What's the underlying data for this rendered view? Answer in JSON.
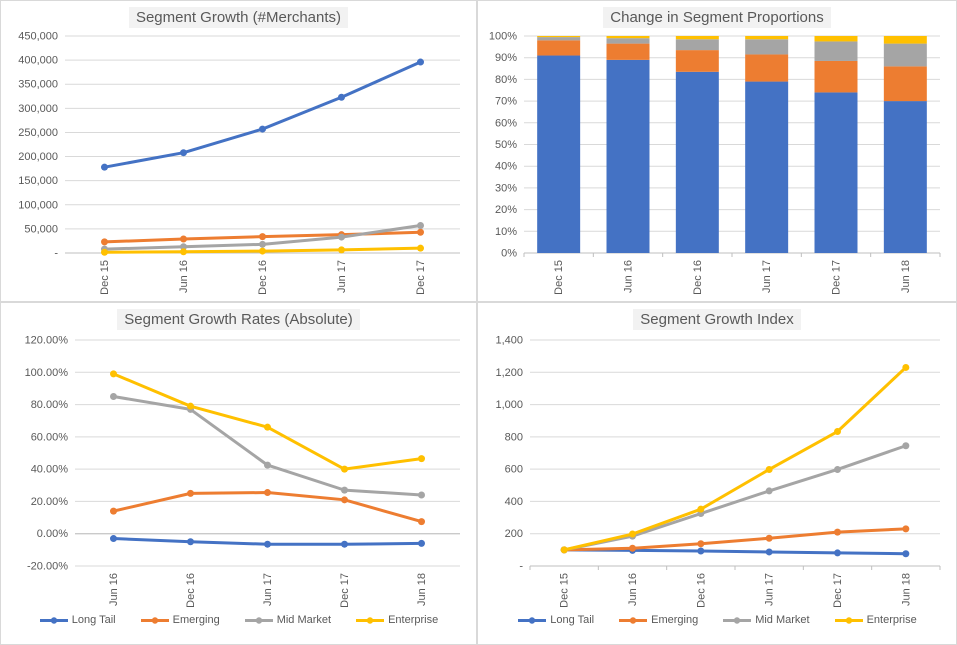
{
  "palette": {
    "long_tail": "#4472C4",
    "emerging": "#ED7D31",
    "mid_market": "#A5A5A5",
    "enterprise": "#FFC000",
    "axis_text": "#595959",
    "gridline": "#D9D9D9",
    "axis_line": "#BFBFBF",
    "title_text": "#595959",
    "title_bg": "#F2F2F2",
    "panel_border": "#D9D9D9"
  },
  "chart_data": [
    {
      "type": "line",
      "title": "Segment Growth (#Merchants)",
      "categories": [
        "Dec 15",
        "Jun 16",
        "Dec 16",
        "Jun 17",
        "Dec 17"
      ],
      "series": [
        {
          "name": "Long Tail",
          "color": "#4472C4",
          "values": [
            178000,
            208000,
            257000,
            323000,
            396000
          ]
        },
        {
          "name": "Emerging",
          "color": "#ED7D31",
          "values": [
            23000,
            29000,
            34000,
            38000,
            43000
          ]
        },
        {
          "name": "Mid Market",
          "color": "#A5A5A5",
          "values": [
            8000,
            13000,
            18000,
            33000,
            57000
          ]
        },
        {
          "name": "Enterprise",
          "color": "#FFC000",
          "values": [
            1500,
            2500,
            4000,
            6500,
            10000
          ]
        }
      ],
      "y": {
        "min": 0,
        "max": 450000,
        "step": 50000,
        "format": "thousands"
      },
      "grid": true,
      "legend": false
    },
    {
      "type": "stacked-bar",
      "title": "Change in Segment Proportions",
      "categories": [
        "Dec 15",
        "Jun 16",
        "Dec 16",
        "Jun 17",
        "Dec 17",
        "Jun 18"
      ],
      "series": [
        {
          "name": "Long Tail",
          "color": "#4472C4",
          "values": [
            91,
            89,
            83.5,
            79,
            74,
            70
          ]
        },
        {
          "name": "Emerging",
          "color": "#ED7D31",
          "values": [
            7,
            7.5,
            10,
            12.5,
            14.5,
            16
          ]
        },
        {
          "name": "Mid Market",
          "color": "#A5A5A5",
          "values": [
            1.5,
            2.5,
            5,
            7,
            9,
            10.5
          ]
        },
        {
          "name": "Enterprise",
          "color": "#FFC000",
          "values": [
            0.5,
            1,
            1.5,
            1.5,
            2.5,
            3.5
          ]
        }
      ],
      "y": {
        "min": 0,
        "max": 100,
        "step": 10,
        "format": "percent0"
      },
      "grid": true,
      "legend": false
    },
    {
      "type": "line",
      "title": "Segment Growth Rates (Absolute)",
      "categories": [
        "Jun 16",
        "Dec 16",
        "Jun 17",
        "Dec 17",
        "Jun 18"
      ],
      "series": [
        {
          "name": "Long Tail",
          "color": "#4472C4",
          "values": [
            -3,
            -5,
            -6.5,
            -6.5,
            -6
          ]
        },
        {
          "name": "Emerging",
          "color": "#ED7D31",
          "values": [
            14,
            25,
            25.5,
            21,
            7.5
          ]
        },
        {
          "name": "Mid Market",
          "color": "#A5A5A5",
          "values": [
            85,
            77,
            42.5,
            27,
            24
          ]
        },
        {
          "name": "Enterprise",
          "color": "#FFC000",
          "values": [
            99,
            79,
            66,
            40,
            46.5
          ]
        }
      ],
      "y": {
        "min": -20,
        "max": 120,
        "step": 20,
        "format": "percent2"
      },
      "grid": true,
      "legend": true
    },
    {
      "type": "line",
      "title": "Segment Growth Index",
      "categories": [
        "Dec 15",
        "Jun 16",
        "Dec 16",
        "Jun 17",
        "Dec 17",
        "Jun 18"
      ],
      "series": [
        {
          "name": "Long Tail",
          "color": "#4472C4",
          "values": [
            100,
            97,
            93,
            87,
            81,
            76
          ]
        },
        {
          "name": "Emerging",
          "color": "#ED7D31",
          "values": [
            100,
            110,
            138,
            172,
            210,
            230
          ]
        },
        {
          "name": "Mid Market",
          "color": "#A5A5A5",
          "values": [
            100,
            185,
            325,
            465,
            598,
            745
          ]
        },
        {
          "name": "Enterprise",
          "color": "#FFC000",
          "values": [
            100,
            198,
            352,
            598,
            833,
            1230
          ]
        }
      ],
      "y": {
        "min": 0,
        "max": 1400,
        "step": 200,
        "format": "thousands"
      },
      "grid": true,
      "legend": true
    }
  ]
}
